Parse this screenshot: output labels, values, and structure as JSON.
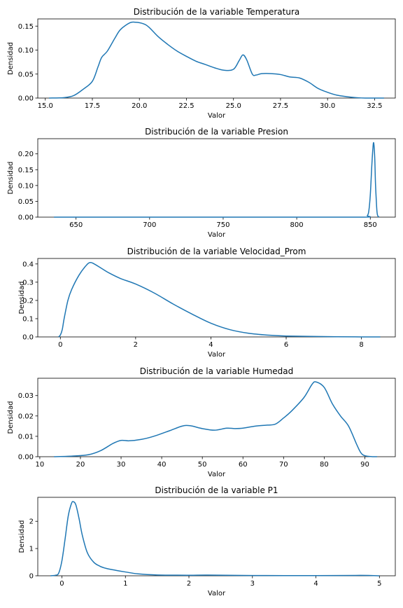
{
  "chart_data": [
    {
      "type": "line",
      "title": "Distribución de la variable Temperatura",
      "xlabel": "Valor",
      "ylabel": "Densidad",
      "xlim": [
        14.6,
        33.6
      ],
      "ylim": [
        0,
        0.165
      ],
      "xticks": [
        15.0,
        17.5,
        20.0,
        22.5,
        25.0,
        27.5,
        30.0,
        32.5
      ],
      "xtick_labels": [
        "15.0",
        "17.5",
        "20.0",
        "22.5",
        "25.0",
        "27.5",
        "30.0",
        "32.5"
      ],
      "yticks": [
        0,
        0.05,
        0.1,
        0.15
      ],
      "ytick_labels": [
        "0.00",
        "0.05",
        "0.10",
        "0.15"
      ],
      "color": "#1f77b4",
      "series": [
        {
          "x": [
            15.2,
            16.0,
            16.5,
            17.0,
            17.5,
            17.8,
            18.0,
            18.3,
            18.7,
            19.0,
            19.5,
            19.8,
            20.2,
            20.5,
            21.0,
            21.5,
            22.0,
            22.5,
            23.0,
            23.5,
            24.0,
            24.5,
            25.0,
            25.3,
            25.5,
            25.7,
            26.0,
            26.2,
            26.5,
            27.0,
            27.5,
            28.0,
            28.5,
            29.0,
            29.5,
            30.0,
            30.5,
            31.0,
            31.5,
            32.0,
            33.0
          ],
          "y": [
            0.0,
            0.001,
            0.005,
            0.018,
            0.035,
            0.065,
            0.085,
            0.098,
            0.125,
            0.143,
            0.157,
            0.158,
            0.155,
            0.148,
            0.128,
            0.112,
            0.098,
            0.087,
            0.077,
            0.07,
            0.063,
            0.058,
            0.06,
            0.078,
            0.09,
            0.08,
            0.05,
            0.048,
            0.051,
            0.051,
            0.049,
            0.044,
            0.042,
            0.033,
            0.02,
            0.012,
            0.006,
            0.003,
            0.001,
            0.0,
            0.0
          ]
        }
      ]
    },
    {
      "type": "line",
      "title": "Distribución de la variable Presion",
      "xlabel": "Valor",
      "ylabel": "Densidad",
      "xlim": [
        624,
        867
      ],
      "ylim": [
        0,
        0.248
      ],
      "xticks": [
        650,
        700,
        750,
        800,
        850
      ],
      "xtick_labels": [
        "650",
        "700",
        "750",
        "800",
        "850"
      ],
      "yticks": [
        0,
        0.05,
        0.1,
        0.15,
        0.2
      ],
      "ytick_labels": [
        "0.00",
        "0.05",
        "0.10",
        "0.15",
        "0.20"
      ],
      "color": "#1f77b4",
      "series": [
        {
          "x": [
            635,
            700,
            800,
            846,
            848,
            849,
            850,
            851,
            851.7,
            852.3,
            853,
            853.5,
            854,
            854.5,
            855,
            856
          ],
          "y": [
            0.0,
            0.0,
            0.0,
            0.0,
            0.005,
            0.02,
            0.07,
            0.16,
            0.213,
            0.235,
            0.19,
            0.11,
            0.06,
            0.02,
            0.005,
            0.0
          ]
        }
      ]
    },
    {
      "type": "line",
      "title": "Distribución de la variable Velocidad_Prom",
      "xlabel": "Valor",
      "ylabel": "Densidad",
      "xlim": [
        -0.6,
        8.9
      ],
      "ylim": [
        0,
        0.43
      ],
      "xticks": [
        0,
        2,
        4,
        6,
        8
      ],
      "xtick_labels": [
        "0",
        "2",
        "4",
        "6",
        "8"
      ],
      "yticks": [
        0,
        0.1,
        0.2,
        0.3,
        0.4
      ],
      "ytick_labels": [
        "0.0",
        "0.1",
        "0.2",
        "0.3",
        "0.4"
      ],
      "color": "#1f77b4",
      "series": [
        {
          "x": [
            -0.05,
            0.0,
            0.05,
            0.1,
            0.2,
            0.3,
            0.5,
            0.7,
            0.8,
            0.9,
            1.1,
            1.3,
            1.6,
            2.0,
            2.5,
            3.0,
            3.5,
            4.0,
            4.5,
            5.0,
            5.5,
            6.0,
            7.0,
            8.0,
            8.5
          ],
          "y": [
            0.0,
            0.01,
            0.04,
            0.1,
            0.2,
            0.26,
            0.34,
            0.395,
            0.408,
            0.4,
            0.375,
            0.35,
            0.32,
            0.29,
            0.24,
            0.18,
            0.125,
            0.075,
            0.04,
            0.02,
            0.01,
            0.005,
            0.002,
            0.0,
            0.0
          ]
        }
      ]
    },
    {
      "type": "line",
      "title": "Distribución de la variable Humedad",
      "xlabel": "Valor",
      "ylabel": "Densidad",
      "xlim": [
        9.5,
        97.5
      ],
      "ylim": [
        0,
        0.0385
      ],
      "xticks": [
        10,
        20,
        30,
        40,
        50,
        60,
        70,
        80,
        90
      ],
      "xtick_labels": [
        "10",
        "20",
        "30",
        "40",
        "50",
        "60",
        "70",
        "80",
        "90"
      ],
      "yticks": [
        0,
        0.01,
        0.02,
        0.03
      ],
      "ytick_labels": [
        "0.00",
        "0.01",
        "0.02",
        "0.03"
      ],
      "color": "#1f77b4",
      "series": [
        {
          "x": [
            13.5,
            18,
            22,
            25,
            28,
            30,
            32,
            35,
            38,
            42,
            45,
            47,
            50,
            53,
            56,
            58,
            60,
            63,
            66,
            68,
            70,
            72,
            75,
            77,
            78,
            80,
            82,
            84,
            86,
            88,
            89,
            90,
            92,
            93
          ],
          "y": [
            0.0,
            0.0003,
            0.001,
            0.003,
            0.0065,
            0.008,
            0.0078,
            0.0085,
            0.01,
            0.0128,
            0.015,
            0.0152,
            0.0138,
            0.013,
            0.014,
            0.0138,
            0.014,
            0.015,
            0.0155,
            0.016,
            0.019,
            0.0225,
            0.029,
            0.0355,
            0.0367,
            0.034,
            0.026,
            0.02,
            0.015,
            0.006,
            0.002,
            0.0005,
            0.0,
            0.0
          ]
        }
      ]
    },
    {
      "type": "line",
      "title": "Distribución de la variable P1",
      "xlabel": "Valor",
      "ylabel": "Densidad",
      "xlim": [
        -0.38,
        5.25
      ],
      "ylim": [
        0,
        2.88
      ],
      "xticks": [
        0,
        1,
        2,
        3,
        4,
        5
      ],
      "xtick_labels": [
        "0",
        "1",
        "2",
        "3",
        "4",
        "5"
      ],
      "yticks": [
        0,
        1,
        2
      ],
      "ytick_labels": [
        "0",
        "1",
        "2"
      ],
      "color": "#1f77b4",
      "series": [
        {
          "x": [
            -0.18,
            -0.1,
            -0.05,
            0.0,
            0.05,
            0.1,
            0.15,
            0.18,
            0.22,
            0.27,
            0.32,
            0.4,
            0.5,
            0.6,
            0.7,
            0.85,
            1.0,
            1.2,
            1.5,
            2.0,
            2.3,
            3.0,
            4.0,
            4.7,
            5.0
          ],
          "y": [
            0.0,
            0.02,
            0.1,
            0.55,
            1.35,
            2.2,
            2.65,
            2.72,
            2.6,
            2.1,
            1.5,
            0.85,
            0.5,
            0.35,
            0.27,
            0.2,
            0.14,
            0.07,
            0.03,
            0.02,
            0.025,
            0.01,
            0.005,
            0.015,
            0.0
          ]
        }
      ]
    }
  ]
}
